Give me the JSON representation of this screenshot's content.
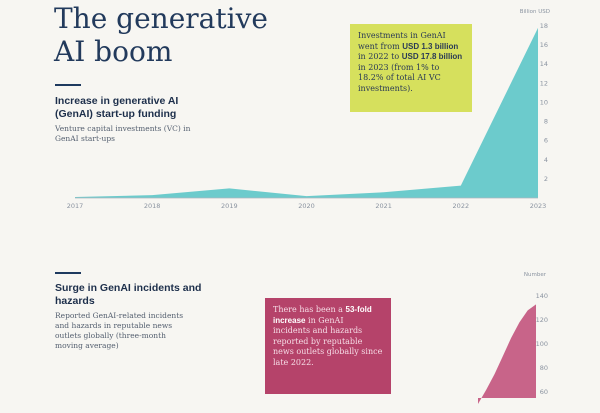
{
  "title_lines": [
    "The generative",
    "AI boom"
  ],
  "section1": {
    "heading": "Increase in generative AI (GenAI) start-up funding",
    "description": "Venture capital investments (VC) in GenAI start-ups",
    "callout": {
      "p1": "Investments in GenAI went from ",
      "b1": "USD 1.3 billion",
      "p2": " in 2022 to ",
      "b2": "USD 17.8 billion",
      "p3": " in 2023 (from 1% to 18.2% of total AI VC investments)."
    }
  },
  "section2": {
    "heading": "Surge in GenAI incidents and hazards",
    "description": "Reported GenAI-related incidents and hazards in reputable news outlets globally (three-month moving average)",
    "callout": {
      "p1": "There has been a ",
      "b1": "53-fold increase",
      "p2": " in GenAI incidents and hazards reported by reputable news outlets globally since late 2022."
    }
  },
  "colors": {
    "funding_fill": "#53c3c6",
    "incidents_fill": "#c04a77",
    "callout_top": "#d6e05d",
    "callout_bottom": "#b5436a"
  },
  "chart_data": [
    {
      "type": "area",
      "title": "Increase in generative AI (GenAI) start-up funding",
      "unit_label": "Billion USD",
      "x": [
        "2017",
        "2018",
        "2019",
        "2020",
        "2021",
        "2022",
        "2023"
      ],
      "values": [
        0.1,
        0.3,
        1.0,
        0.2,
        0.6,
        1.3,
        17.8
      ],
      "ylim": [
        0,
        18
      ],
      "yticks": [
        2,
        4,
        6,
        8,
        10,
        12,
        14,
        16,
        18
      ],
      "grid": false
    },
    {
      "type": "area",
      "title": "Surge in GenAI incidents and hazards",
      "unit_label": "Number",
      "values": [
        50,
        62,
        75,
        90,
        105,
        118,
        128,
        133
      ],
      "ylim": [
        55,
        145
      ],
      "yticks": [
        60,
        80,
        100,
        120,
        140
      ],
      "grid": false
    }
  ]
}
